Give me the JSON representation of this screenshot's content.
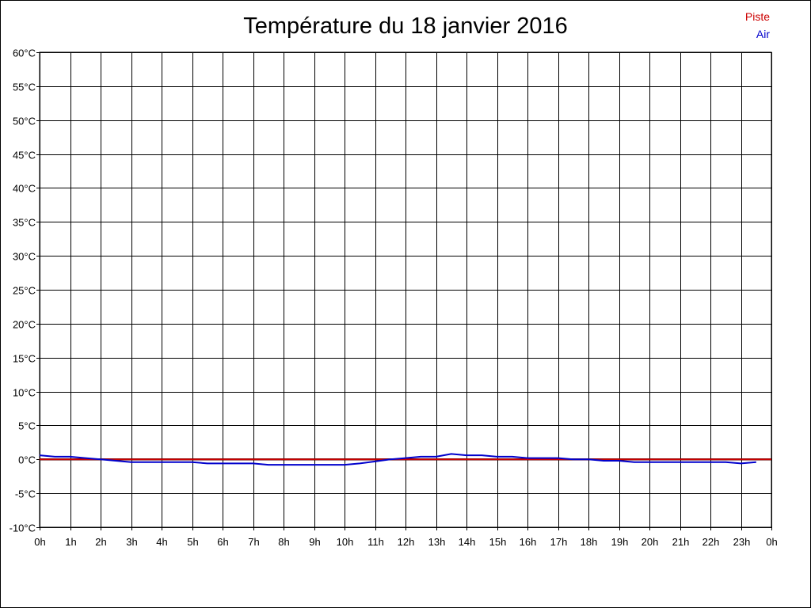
{
  "chart_data": {
    "type": "line",
    "title": "Température du 18 janvier 2016",
    "xlabel": "",
    "ylabel": "",
    "x_tick_labels": [
      "0h",
      "1h",
      "2h",
      "3h",
      "4h",
      "5h",
      "6h",
      "7h",
      "8h",
      "9h",
      "10h",
      "11h",
      "12h",
      "13h",
      "14h",
      "15h",
      "16h",
      "17h",
      "18h",
      "19h",
      "20h",
      "21h",
      "22h",
      "23h",
      "0h"
    ],
    "y_tick_labels": [
      "60°C",
      "55°C",
      "50°C",
      "45°C",
      "40°C",
      "35°C",
      "30°C",
      "25°C",
      "20°C",
      "15°C",
      "10°C",
      "5°C",
      "0°C",
      "-5°C",
      "-10°C"
    ],
    "xlim": [
      0,
      24
    ],
    "ylim": [
      -10,
      60
    ],
    "grid": true,
    "legend_position": "top-right",
    "series": [
      {
        "name": "Piste",
        "color": "#cc0000",
        "x": [
          0,
          24
        ],
        "y": [
          0,
          0
        ]
      },
      {
        "name": "Air",
        "color": "#0000cc",
        "x": [
          0,
          0.5,
          1,
          1.5,
          2,
          2.5,
          3,
          3.5,
          4,
          4.5,
          5,
          5.5,
          6,
          6.5,
          7,
          7.5,
          8,
          8.5,
          9,
          9.5,
          10,
          10.5,
          11,
          11.5,
          12,
          12.5,
          13,
          13.5,
          14,
          14.5,
          15,
          15.5,
          16,
          16.5,
          17,
          17.5,
          18,
          18.5,
          19,
          19.5,
          20,
          20.5,
          21,
          21.5,
          22,
          22.5,
          23,
          23.5
        ],
        "y": [
          0.6,
          0.4,
          0.4,
          0.2,
          0.0,
          -0.2,
          -0.4,
          -0.4,
          -0.4,
          -0.4,
          -0.4,
          -0.6,
          -0.6,
          -0.6,
          -0.6,
          -0.8,
          -0.8,
          -0.8,
          -0.8,
          -0.8,
          -0.8,
          -0.6,
          -0.3,
          0.0,
          0.2,
          0.4,
          0.4,
          0.8,
          0.6,
          0.6,
          0.4,
          0.4,
          0.2,
          0.2,
          0.2,
          0.0,
          0.0,
          -0.2,
          -0.2,
          -0.4,
          -0.4,
          -0.4,
          -0.4,
          -0.4,
          -0.4,
          -0.4,
          -0.6,
          -0.4
        ]
      }
    ]
  }
}
